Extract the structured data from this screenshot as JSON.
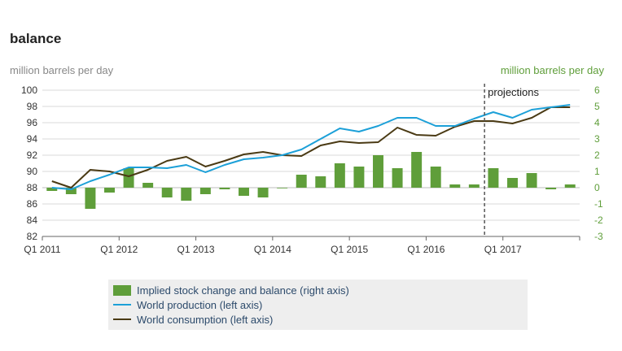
{
  "title": "balance",
  "chart_data": {
    "type": "bar+line",
    "title": "balance",
    "ylabel_left": "million barrels per day",
    "ylabel_right": "million barrels per day",
    "ylim_left": [
      82,
      100
    ],
    "yticks_left": [
      82,
      84,
      86,
      88,
      90,
      92,
      94,
      96,
      98,
      100
    ],
    "ylim_right": [
      -3,
      6
    ],
    "yticks_right": [
      -3,
      -2,
      -1,
      0,
      1,
      2,
      3,
      4,
      5,
      6
    ],
    "x_tick_labels": [
      "Q1 2011",
      "Q1 2012",
      "Q1 2013",
      "Q1 2014",
      "Q1 2015",
      "Q1 2016",
      "Q1 2017"
    ],
    "annotation": "projections",
    "projection_start_quarter_index": 23,
    "grid": true,
    "legend_position": "bottom",
    "series": [
      {
        "name": "Implied stock change and balance (right axis)",
        "kind": "bar",
        "axis": "right",
        "color": "#5f9e3a",
        "values": [
          -0.2,
          -0.4,
          -1.3,
          -0.3,
          1.2,
          0.3,
          -0.6,
          -0.8,
          -0.4,
          -0.1,
          -0.5,
          -0.6,
          0.0,
          0.8,
          0.7,
          1.5,
          1.3,
          2.0,
          1.2,
          2.2,
          1.3,
          0.2,
          0.2,
          1.2,
          0.6,
          0.9,
          -0.1,
          0.2
        ]
      },
      {
        "name": "World production (left axis)",
        "kind": "line",
        "axis": "left",
        "color": "#1ca0d8",
        "values": [
          88.0,
          87.8,
          88.8,
          89.6,
          90.5,
          90.5,
          90.4,
          90.8,
          89.9,
          90.8,
          91.5,
          91.7,
          92.0,
          92.7,
          94.0,
          95.3,
          94.9,
          95.6,
          96.6,
          96.6,
          95.6,
          95.6,
          96.5,
          97.3,
          96.6,
          97.6,
          97.9,
          98.2
        ]
      },
      {
        "name": "World consumption (left axis)",
        "kind": "line",
        "axis": "left",
        "color": "#4a3a14",
        "values": [
          88.8,
          88.0,
          90.2,
          90.0,
          89.4,
          90.2,
          91.3,
          91.8,
          90.6,
          91.3,
          92.1,
          92.4,
          92.0,
          91.9,
          93.2,
          93.7,
          93.5,
          93.6,
          95.4,
          94.5,
          94.4,
          95.5,
          96.2,
          96.2,
          95.9,
          96.6,
          97.9,
          97.9
        ]
      }
    ]
  }
}
